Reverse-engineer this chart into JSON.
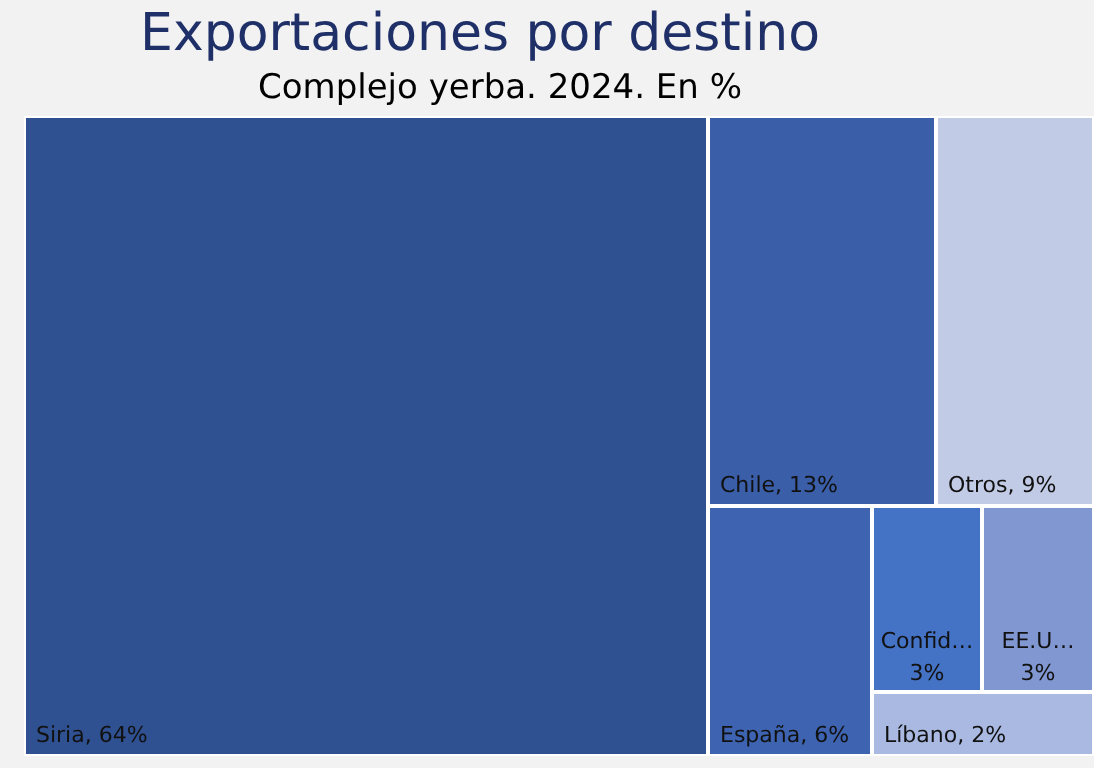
{
  "chart_data": {
    "type": "other",
    "title": "Exportaciones por destino",
    "subtitle": "Complejo yerba. 2024. En %",
    "categories": [
      "Siria",
      "Chile",
      "Otros",
      "España",
      "Confid…",
      "EE.U…",
      "Líbano"
    ],
    "values": [
      64,
      13,
      9,
      6,
      3,
      3,
      2
    ],
    "value_labels": [
      ", 64%",
      ", 13%",
      ", 9%",
      ", 6%",
      "3%",
      "3%",
      ", 2%"
    ],
    "colors": [
      "#2f5091",
      "#3a5ea8",
      "#c2cbe6",
      "#3d63b1",
      "#4472c4",
      "#8197d2",
      "#aab9e2"
    ]
  }
}
